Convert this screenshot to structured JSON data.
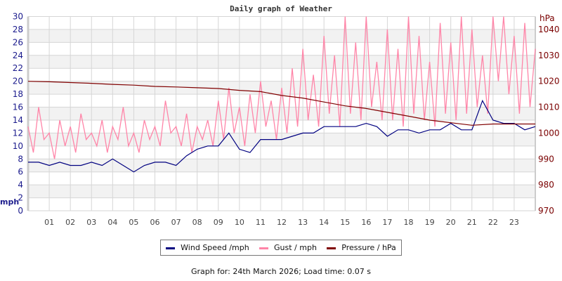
{
  "chart_data": {
    "type": "line",
    "title": "Daily graph of Weather",
    "ylabel_left": "mph",
    "ylabel_right": "hPa",
    "xlim": [
      0,
      24
    ],
    "ylim_left": [
      0,
      30
    ],
    "ylim_right": [
      970,
      1045
    ],
    "x_tick_labels": [
      "01",
      "02",
      "03",
      "04",
      "05",
      "06",
      "07",
      "08",
      "09",
      "10",
      "11",
      "12",
      "13",
      "14",
      "15",
      "16",
      "17",
      "18",
      "19",
      "20",
      "21",
      "22",
      "23"
    ],
    "y_left_ticks": [
      0,
      2,
      4,
      6,
      8,
      10,
      12,
      14,
      16,
      18,
      20,
      22,
      24,
      26,
      28,
      30
    ],
    "y_right_ticks": [
      970,
      980,
      990,
      1000,
      1010,
      1020,
      1030,
      1040
    ],
    "grid": true,
    "legend_position": "bottom",
    "colors": {
      "wind": "#000080",
      "gust": "#ff85a8",
      "pressure": "#800000",
      "left_axis": "#1a1a8c",
      "right_axis": "#7a0000"
    },
    "series": [
      {
        "name": "Wind Speed /mph",
        "axis": "left",
        "x_step_hours": 0.5,
        "values": [
          7.5,
          7.5,
          7,
          7.5,
          7,
          7,
          7.5,
          7,
          8,
          7,
          6,
          7,
          7.5,
          7.5,
          7,
          8.5,
          9.5,
          10,
          10,
          12,
          9.5,
          9,
          11,
          11,
          11,
          11.5,
          12,
          12,
          13,
          13,
          13,
          13,
          13.5,
          13,
          11.5,
          12.5,
          12.5,
          12,
          12.5,
          12.5,
          13.5,
          12.5,
          12.5,
          17,
          14,
          13.5,
          13.5,
          12.5,
          13
        ]
      },
      {
        "name": "Gust / mph",
        "axis": "left",
        "x_step_hours": 0.25,
        "values": [
          13,
          9,
          16,
          11,
          12,
          8,
          14,
          10,
          13,
          9,
          15,
          11,
          12,
          10,
          14,
          9,
          13,
          11,
          16,
          10,
          12,
          9,
          14,
          11,
          13,
          10,
          17,
          12,
          13,
          10,
          15,
          9,
          13,
          11,
          14,
          10,
          17,
          11,
          19,
          12,
          16,
          10,
          18,
          12,
          20,
          13,
          17,
          11,
          19,
          12,
          22,
          13,
          25,
          14,
          21,
          13,
          27,
          15,
          24,
          13,
          30,
          15,
          26,
          14,
          30,
          16,
          23,
          14,
          28,
          14,
          25,
          13,
          30,
          15,
          27,
          14,
          23,
          13,
          29,
          15,
          26,
          14,
          30,
          15,
          28,
          16,
          24,
          15,
          30,
          20,
          30,
          18,
          27,
          15,
          29,
          16,
          25
        ]
      },
      {
        "name": "Pressure / hPa",
        "axis": "right",
        "x_step_hours": 1,
        "values": [
          1020,
          1019.8,
          1019.5,
          1019.2,
          1018.8,
          1018.5,
          1018,
          1017.8,
          1017.5,
          1017.2,
          1016.5,
          1016,
          1014.5,
          1013.5,
          1012,
          1010.5,
          1009.5,
          1008,
          1006.5,
          1005,
          1004,
          1003,
          1003.5,
          1003.5,
          1003.5
        ]
      }
    ]
  },
  "legend": {
    "wind": "Wind Speed /mph",
    "gust": "Gust / mph",
    "pressure": "Pressure / hPa"
  },
  "footer": "Graph for: 24th March 2026; Load time: 0.07 s"
}
